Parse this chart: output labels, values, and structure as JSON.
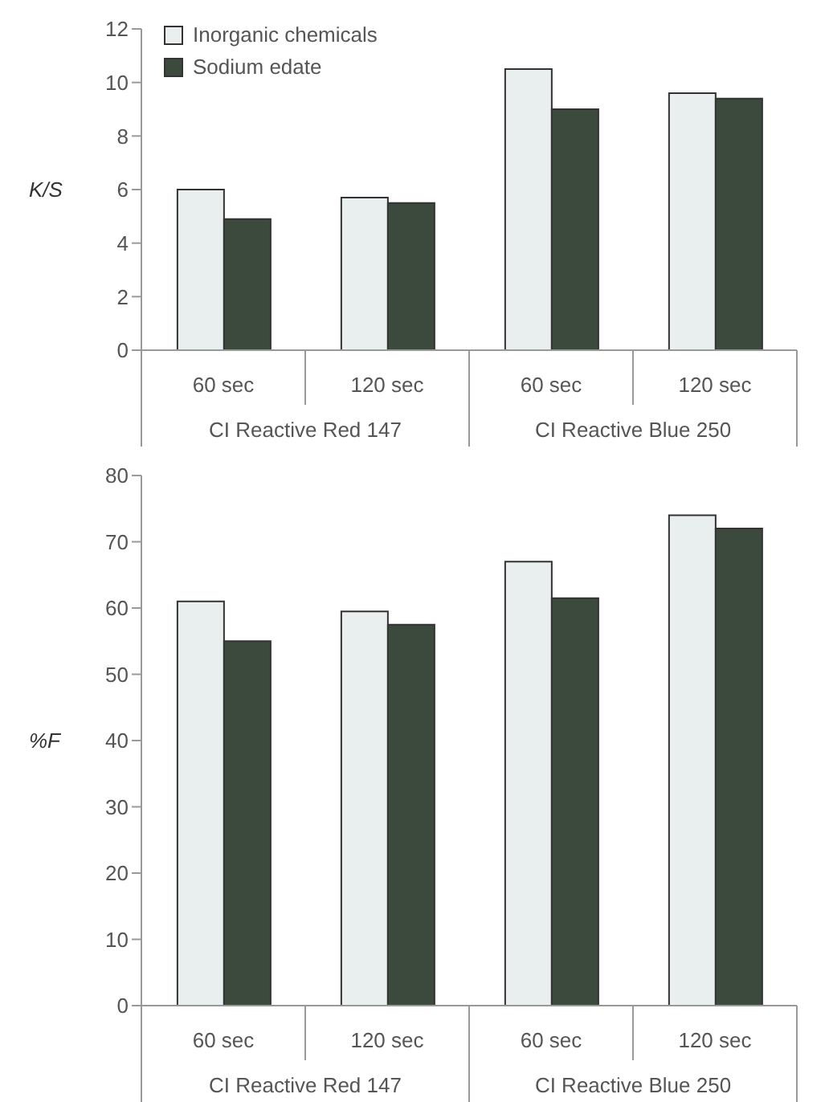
{
  "chart_data": [
    {
      "type": "bar",
      "ylabel": "K/S",
      "categories": [
        "60 sec",
        "120 sec",
        "60 sec",
        "120 sec"
      ],
      "annotations": [
        "CI Reactive Red 147",
        "CI Reactive Blue 250"
      ],
      "ylim": [
        0,
        12
      ],
      "yticks": [
        0,
        2,
        4,
        6,
        8,
        10,
        12
      ],
      "legend": "top left",
      "series": [
        {
          "name": "Inorganic chemicals",
          "color": "#e9efee",
          "values": [
            6.0,
            5.7,
            10.5,
            9.6
          ]
        },
        {
          "name": "Sodium edate",
          "color": "#3b4a3d",
          "values": [
            4.9,
            5.5,
            9.0,
            9.4
          ]
        }
      ]
    },
    {
      "type": "bar",
      "ylabel": "%F",
      "categories": [
        "60 sec",
        "120 sec",
        "60 sec",
        "120 sec"
      ],
      "annotations": [
        "CI Reactive Red 147",
        "CI Reactive Blue 250"
      ],
      "ylim": [
        0,
        80
      ],
      "yticks": [
        0,
        10,
        20,
        30,
        40,
        50,
        60,
        70,
        80
      ],
      "series": [
        {
          "color": "#e9efee",
          "values": [
            61,
            59.5,
            67,
            74
          ]
        },
        {
          "color": "#3b4a3d",
          "values": [
            55,
            57.5,
            61.5,
            72
          ]
        }
      ]
    }
  ]
}
